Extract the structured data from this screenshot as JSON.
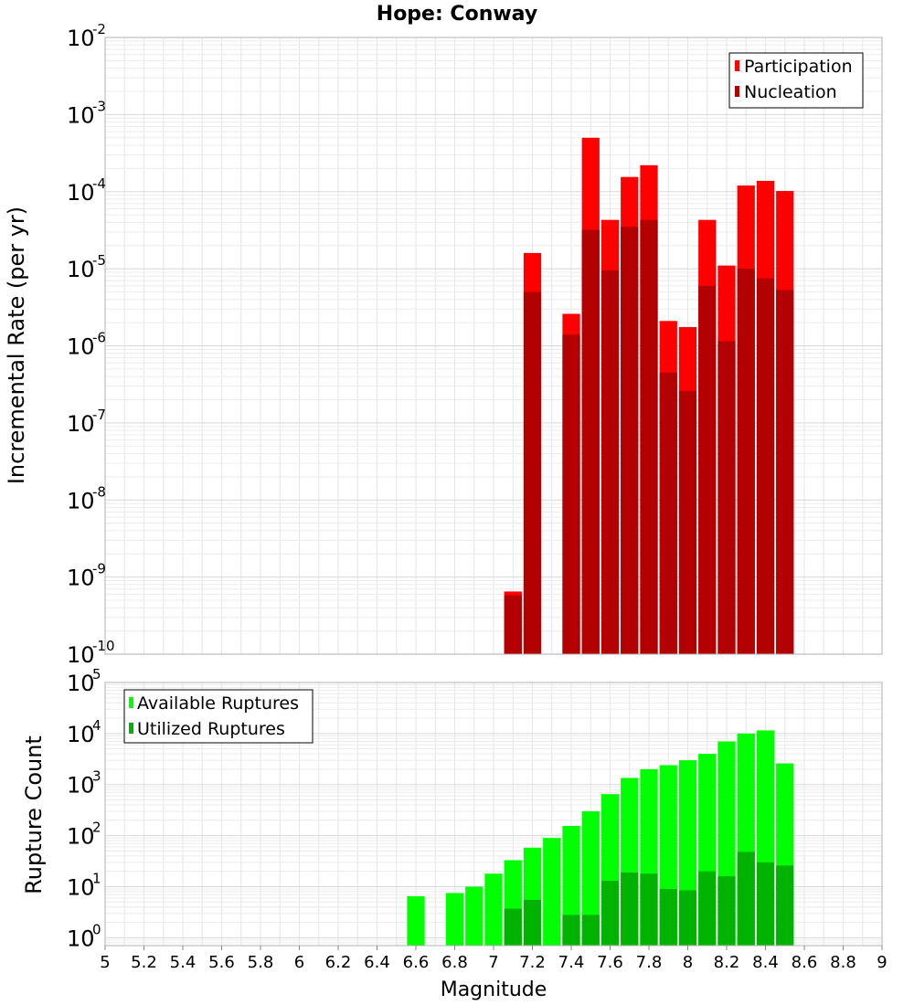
{
  "chart_data": [
    {
      "type": "bar",
      "title": "Hope: Conway",
      "ylabel": "Incremental Rate (per yr)",
      "xlabel": "",
      "yscale": "log",
      "ylim": [
        1e-10,
        0.01
      ],
      "xlim": [
        5,
        9
      ],
      "bar_width": 0.1,
      "grid": true,
      "legend": "top-right",
      "series": [
        {
          "name": "Participation",
          "color": "#ff0000",
          "x": [
            7.1,
            7.2,
            7.4,
            7.5,
            7.6,
            7.7,
            7.8,
            7.9,
            8.0,
            8.1,
            8.2,
            8.3,
            8.4,
            8.5
          ],
          "values": [
            6.5e-10,
            1.6e-05,
            2.6e-06,
            0.0005,
            4.3e-05,
            0.000155,
            0.00022,
            2.1e-06,
            1.75e-06,
            4.3e-05,
            1.1e-05,
            0.00012,
            0.000138,
            0.000102
          ]
        },
        {
          "name": "Nucleation",
          "color": "#b30000",
          "x": [
            7.1,
            7.2,
            7.4,
            7.5,
            7.6,
            7.7,
            7.8,
            7.9,
            8.0,
            8.1,
            8.2,
            8.3,
            8.4,
            8.5
          ],
          "values": [
            5.8e-10,
            5e-06,
            1.4e-06,
            3.2e-05,
            9.5e-06,
            3.5e-05,
            4.3e-05,
            4.5e-07,
            2.6e-07,
            6e-06,
            1.15e-06,
            1e-05,
            7.5e-06,
            5.3e-06
          ]
        }
      ]
    },
    {
      "type": "bar",
      "title": "",
      "ylabel": "Rupture Count",
      "xlabel": "Magnitude",
      "yscale": "log",
      "ylim": [
        0.7,
        100000
      ],
      "xlim": [
        5,
        9
      ],
      "bar_width": 0.1,
      "grid": true,
      "legend": "top-left",
      "x_ticks": [
        "5",
        "5.2",
        "5.4",
        "5.6",
        "5.8",
        "6",
        "6.2",
        "6.4",
        "6.6",
        "6.8",
        "7",
        "7.2",
        "7.4",
        "7.6",
        "7.8",
        "8",
        "8.2",
        "8.4",
        "8.6",
        "8.8",
        "9"
      ],
      "series": [
        {
          "name": "Available Ruptures",
          "color": "#00ff00",
          "x": [
            6.6,
            6.8,
            6.9,
            7.0,
            7.1,
            7.2,
            7.3,
            7.4,
            7.5,
            7.6,
            7.7,
            7.8,
            7.9,
            8.0,
            8.1,
            8.2,
            8.3,
            8.4,
            8.5
          ],
          "values": [
            6.5,
            7.5,
            10,
            18,
            33,
            58,
            90,
            155,
            300,
            650,
            1350,
            2000,
            2400,
            3000,
            4000,
            7000,
            10000,
            11500,
            2600
          ]
        },
        {
          "name": "Utilized Ruptures",
          "color": "#00b300",
          "x": [
            7.1,
            7.2,
            7.4,
            7.5,
            7.6,
            7.7,
            7.8,
            7.9,
            8.0,
            8.1,
            8.2,
            8.3,
            8.4,
            8.5
          ],
          "values": [
            3.7,
            5.5,
            2.8,
            2.8,
            13,
            19,
            18,
            9,
            8.5,
            20,
            16,
            48,
            30,
            26
          ]
        }
      ]
    }
  ],
  "y_ticks": {
    "top": [
      {
        "base": "10",
        "exp": "-2",
        "v": 0.01
      },
      {
        "base": "10",
        "exp": "-3",
        "v": 0.001
      },
      {
        "base": "10",
        "exp": "-4",
        "v": 0.0001
      },
      {
        "base": "10",
        "exp": "-5",
        "v": 1e-05
      },
      {
        "base": "10",
        "exp": "-6",
        "v": 1e-06
      },
      {
        "base": "10",
        "exp": "-7",
        "v": 1e-07
      },
      {
        "base": "10",
        "exp": "-8",
        "v": 1e-08
      },
      {
        "base": "10",
        "exp": "-9",
        "v": 1e-09
      },
      {
        "base": "10",
        "exp": "-10",
        "v": 1e-10
      }
    ],
    "bottom": [
      {
        "base": "10",
        "exp": "5",
        "v": 100000
      },
      {
        "base": "10",
        "exp": "4",
        "v": 10000
      },
      {
        "base": "10",
        "exp": "3",
        "v": 1000
      },
      {
        "base": "10",
        "exp": "2",
        "v": 100
      },
      {
        "base": "10",
        "exp": "1",
        "v": 10
      },
      {
        "base": "10",
        "exp": "0",
        "v": 1
      }
    ]
  }
}
